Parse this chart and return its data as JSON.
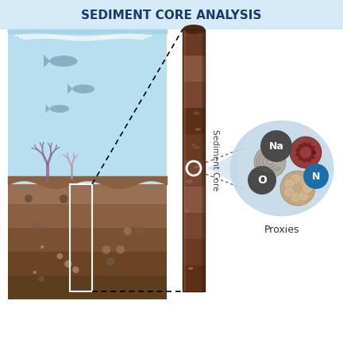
{
  "title": "SEDIMENT CORE ANALYSIS",
  "title_color": "#1a3a6b",
  "title_bg": "#d6eaf8",
  "bg_color": "#ffffff",
  "header_bg": "#d6eaf8",
  "water_color_top": "#b8dff0",
  "water_color_bottom": "#7bbfdb",
  "sediment_colors": [
    "#8B6914",
    "#7A5C10",
    "#6B4E0E",
    "#5C3D0C"
  ],
  "core_colors": [
    "#6b3a2a",
    "#7a4232",
    "#8b5540",
    "#7a4232",
    "#6b3a2a"
  ],
  "proxies_label": "Proxies",
  "sediment_label": "Sediment Core",
  "proxy_bg": "#c8dce8",
  "O_color": "#4a4a4a",
  "N_color": "#1a6fa8",
  "Na_color": "#4a4a4a",
  "foraminifera_color": "#c4a882",
  "coccolith_color": "#8a7a6a",
  "pollen_color": "#8b2020"
}
